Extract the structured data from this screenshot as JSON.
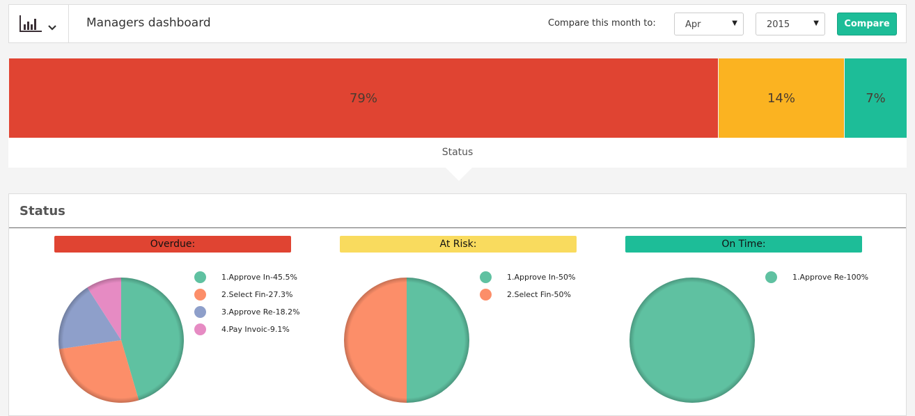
{
  "header": {
    "title": "Managers dashboard",
    "compare_label": "Compare this month to:",
    "month": "Apr",
    "year": "2015",
    "compare_button": "Compare"
  },
  "status_bar": {
    "segments": [
      {
        "label": "79%",
        "value": 79,
        "color": "#e04432"
      },
      {
        "label": "14%",
        "value": 14,
        "color": "#fbb321"
      },
      {
        "label": "7%",
        "value": 7,
        "color": "#1dbd98"
      }
    ],
    "caption": "Status"
  },
  "panel": {
    "title": "Status"
  },
  "chart_data": [
    {
      "type": "pie",
      "title": "Overdue:",
      "title_color": "#e04432",
      "slices": [
        {
          "label": "1.Approve In-45.5%",
          "value": 45.5,
          "color": "#5fc1a1"
        },
        {
          "label": "2.Select Fin-27.3%",
          "value": 27.3,
          "color": "#fc8e69"
        },
        {
          "label": "3.Approve Re-18.2%",
          "value": 18.2,
          "color": "#8e9fca"
        },
        {
          "label": "4.Pay Invoic-9.1%",
          "value": 9.1,
          "color": "#e68bc3"
        }
      ]
    },
    {
      "type": "pie",
      "title": "At Risk:",
      "title_color": "#f9db5e",
      "slices": [
        {
          "label": "1.Approve In-50%",
          "value": 50,
          "color": "#5fc1a1"
        },
        {
          "label": "2.Select Fin-50%",
          "value": 50,
          "color": "#fc8e69"
        }
      ]
    },
    {
      "type": "pie",
      "title": "On Time:",
      "title_color": "#1dbd98",
      "slices": [
        {
          "label": "1.Approve Re-100%",
          "value": 100,
          "color": "#5fc1a1"
        }
      ]
    }
  ]
}
